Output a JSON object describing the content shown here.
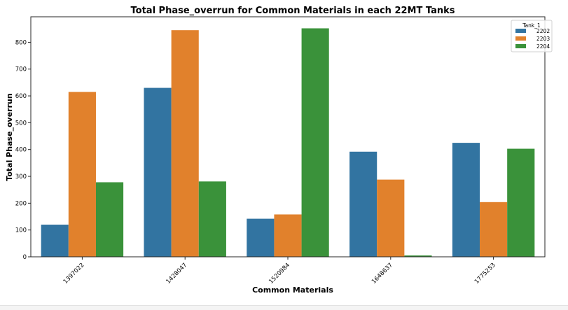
{
  "chart_data": {
    "type": "bar",
    "title": "Total Phase_overrun for Common Materials in each 22MT Tanks",
    "xlabel": "Common Materials",
    "ylabel": "Total Phase_overrun",
    "categories": [
      "1397022",
      "1428047",
      "1520984",
      "1648637",
      "1775253"
    ],
    "series": [
      {
        "name": "2202",
        "color": "#3274a1",
        "values": [
          120,
          630,
          142,
          392,
          425
        ]
      },
      {
        "name": "2203",
        "color": "#e1812c",
        "values": [
          615,
          845,
          158,
          288,
          204
        ]
      },
      {
        "name": "2204",
        "color": "#3a923a",
        "values": [
          278,
          281,
          852,
          5,
          403
        ]
      }
    ],
    "ylim": [
      0,
      895
    ],
    "yticks": [
      0,
      100,
      200,
      300,
      400,
      500,
      600,
      700,
      800
    ],
    "grid": false,
    "legend": {
      "title": "Tank_1",
      "position": "top-right"
    },
    "xtick_rotation": 45
  }
}
